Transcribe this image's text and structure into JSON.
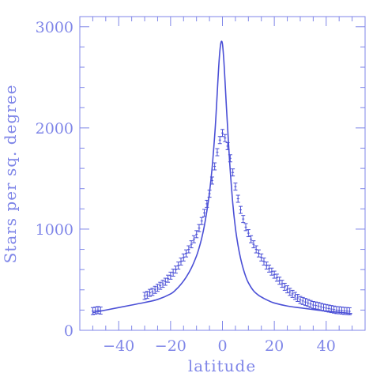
{
  "chart_data": {
    "type": "scatter",
    "title": "",
    "xlabel": "latitude",
    "ylabel": "Stars per sq. degree",
    "xlim": [
      -55,
      55
    ],
    "ylim": [
      0,
      3100
    ],
    "x_major_ticks": [
      -40,
      -20,
      0,
      20,
      40
    ],
    "x_tick_labels": [
      "−40",
      "−20",
      "0",
      "20",
      "40"
    ],
    "y_major_ticks": [
      0,
      1000,
      2000,
      3000
    ],
    "y_tick_labels": [
      "0",
      "1000",
      "2000",
      "3000"
    ],
    "grid": false,
    "legend": "none",
    "colors": {
      "axes": "#7f86e8",
      "data": "#4a4fd6"
    },
    "series": [
      {
        "kind": "points-with-error-bars",
        "x": [
          -50,
          -49,
          -48,
          -47,
          -30,
          -29,
          -28,
          -27,
          -26,
          -25,
          -24,
          -23,
          -22,
          -21,
          -20,
          -19,
          -18,
          -17,
          -16,
          -15,
          -14,
          -13,
          -12,
          -11,
          -10,
          -9,
          -8,
          -7,
          -6,
          -5,
          -4,
          -3,
          -2,
          -1,
          0,
          1,
          2,
          3,
          4,
          5,
          6,
          7,
          8,
          9,
          10,
          11,
          12,
          13,
          14,
          15,
          16,
          17,
          18,
          19,
          20,
          21,
          22,
          23,
          24,
          25,
          26,
          27,
          28,
          29,
          30,
          31,
          32,
          33,
          34,
          35,
          36,
          37,
          38,
          39,
          40,
          41,
          42,
          43,
          44,
          45,
          46,
          47,
          48,
          49
        ],
        "y": [
          190,
          195,
          200,
          195,
          340,
          350,
          370,
          380,
          400,
          420,
          440,
          460,
          480,
          510,
          540,
          570,
          600,
          640,
          680,
          720,
          760,
          800,
          850,
          900,
          950,
          1010,
          1080,
          1160,
          1250,
          1350,
          1480,
          1620,
          1760,
          1880,
          1950,
          1900,
          1820,
          1700,
          1560,
          1420,
          1300,
          1190,
          1100,
          1020,
          960,
          900,
          850,
          800,
          760,
          720,
          680,
          640,
          610,
          580,
          550,
          520,
          490,
          460,
          430,
          405,
          380,
          360,
          340,
          320,
          300,
          290,
          280,
          270,
          260,
          250,
          245,
          240,
          232,
          225,
          220,
          215,
          210,
          205,
          200,
          198,
          195,
          192,
          190,
          188
        ],
        "error": 35
      },
      {
        "kind": "model-curve",
        "x": [
          -50,
          -45,
          -40,
          -35,
          -30,
          -25,
          -20,
          -18,
          -16,
          -14,
          -12,
          -10,
          -9,
          -8,
          -7,
          -6,
          -5,
          -4,
          -3,
          -2.5,
          -2,
          -1.5,
          -1,
          -0.5,
          0,
          0.5,
          1,
          1.5,
          2,
          2.5,
          3,
          4,
          5,
          6,
          7,
          8,
          9,
          10,
          12,
          14,
          16,
          18,
          20,
          25,
          30,
          35,
          40,
          45,
          50
        ],
        "y": [
          175,
          200,
          225,
          250,
          275,
          305,
          360,
          400,
          455,
          525,
          615,
          735,
          815,
          910,
          1030,
          1180,
          1360,
          1600,
          1920,
          2120,
          2350,
          2580,
          2760,
          2850,
          2830,
          2680,
          2460,
          2220,
          2000,
          1780,
          1580,
          1250,
          1010,
          840,
          710,
          610,
          530,
          470,
          390,
          345,
          315,
          290,
          270,
          240,
          222,
          205,
          190,
          178,
          165
        ]
      }
    ]
  }
}
